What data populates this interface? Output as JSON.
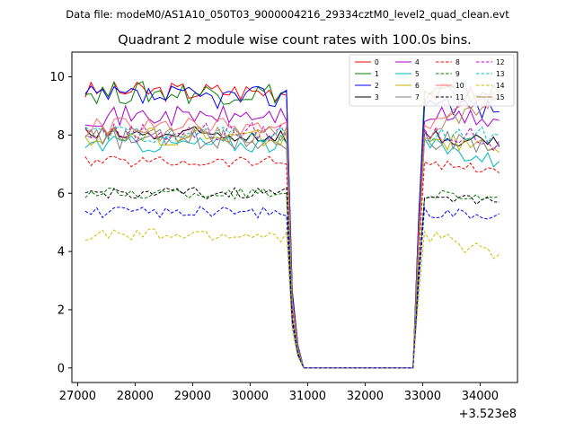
{
  "chart_data": {
    "type": "line",
    "suptitle": "Data file: modeM0/AS1A10_050T03_9000004216_29334cztM0_level2_quad_clean.evt",
    "title": "Quadrant 2 module wise count rates with 100.0s bins.",
    "xlabel": "",
    "ylabel": "",
    "x_offset_label": "+3.523e8",
    "xlim": [
      26900,
      34650
    ],
    "ylim": [
      -0.5,
      10.85
    ],
    "x_ticks": [
      27000,
      28000,
      29000,
      30000,
      31000,
      32000,
      33000,
      34000
    ],
    "x_tick_labels": [
      "27000",
      "28000",
      "29000",
      "30000",
      "31000",
      "32000",
      "33000",
      "34000"
    ],
    "y_ticks": [
      0,
      2,
      4,
      6,
      8,
      10
    ],
    "y_tick_labels": [
      "0",
      "2",
      "4",
      "6",
      "8",
      "10"
    ],
    "legend_position": "top-right",
    "x_spec": {
      "start": 27133,
      "step": 100,
      "count": 73
    },
    "gap": {
      "ramp_down_start": 30733,
      "zero_from": 30933,
      "zero_to": 32833,
      "ramp_up_end": 33033
    },
    "series": [
      {
        "name": "0",
        "color": "#ff0000",
        "dash": false,
        "base": 9.5,
        "amp": 0.35,
        "end": 9.3
      },
      {
        "name": "1",
        "color": "#008000",
        "dash": false,
        "base": 9.45,
        "amp": 0.4,
        "end": 9.4
      },
      {
        "name": "2",
        "color": "#0000ff",
        "dash": false,
        "base": 9.3,
        "amp": 0.4,
        "end": 8.8
      },
      {
        "name": "3",
        "color": "#000000",
        "dash": false,
        "base": 8.0,
        "amp": 0.3,
        "end": 7.6
      },
      {
        "name": "4",
        "color": "#aa00cc",
        "dash": false,
        "base": 8.65,
        "amp": 0.35,
        "end": 8.5
      },
      {
        "name": "5",
        "color": "#00b8c0",
        "dash": false,
        "base": 7.7,
        "amp": 0.3,
        "end": 7.1
      },
      {
        "name": "6",
        "color": "#c8b400",
        "dash": false,
        "base": 7.95,
        "amp": 0.35,
        "end": 7.4
      },
      {
        "name": "7",
        "color": "#808080",
        "dash": false,
        "base": 7.85,
        "amp": 0.35,
        "end": 7.7
      },
      {
        "name": "8",
        "color": "#ff0000",
        "dash": true,
        "base": 7.1,
        "amp": 0.2,
        "end": 6.7
      },
      {
        "name": "9",
        "color": "#008000",
        "dash": true,
        "base": 6.0,
        "amp": 0.2,
        "end": 5.9
      },
      {
        "name": "10",
        "color": "#ff7070",
        "dash": false,
        "base": 8.3,
        "amp": 0.3,
        "end": 9.3
      },
      {
        "name": "11",
        "color": "#000000",
        "dash": true,
        "base": 6.0,
        "amp": 0.2,
        "end": 5.7
      },
      {
        "name": "12",
        "color": "#cc00cc",
        "dash": true,
        "base": 8.1,
        "amp": 0.35,
        "end": 7.8
      },
      {
        "name": "13",
        "color": "#00c0c8",
        "dash": true,
        "base": 8.0,
        "amp": 0.3,
        "end": 8.0
      },
      {
        "name": "14",
        "color": "#c8c000",
        "dash": true,
        "base": 4.55,
        "amp": 0.25,
        "end": 3.9
      },
      {
        "name": "15",
        "color": "#b08850",
        "dash": false,
        "base": 8.0,
        "amp": 0.3,
        "end": 9.3
      },
      {
        "name": "blue-dashed",
        "color": "#0000ff",
        "dash": true,
        "base": 5.35,
        "amp": 0.2,
        "end": 5.3,
        "in_legend": false
      }
    ]
  }
}
